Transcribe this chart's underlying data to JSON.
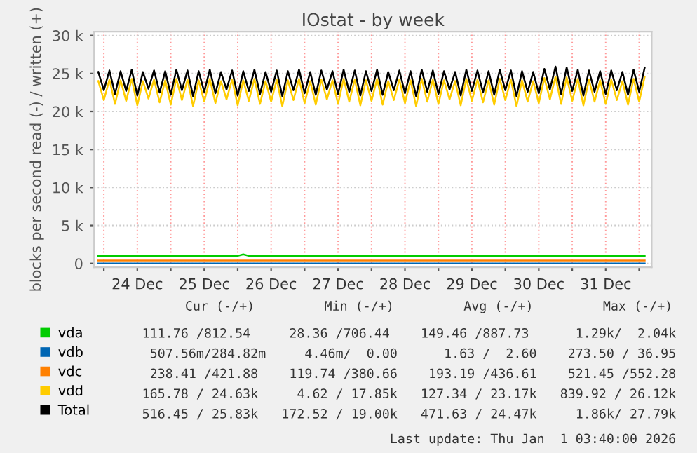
{
  "chart_data": {
    "type": "line",
    "title": "IOstat - by week",
    "ylabel": "blocks per second read (-) / written (+)",
    "x": [
      "2025-12-23T22:00",
      "2025-12-24T00:00",
      "2025-12-24T02:00",
      "2025-12-24T04:00",
      "2025-12-24T06:00",
      "2025-12-24T08:00",
      "2025-12-24T10:00",
      "2025-12-24T12:00",
      "2025-12-24T14:00",
      "2025-12-24T16:00",
      "2025-12-24T18:00",
      "2025-12-24T20:00",
      "2025-12-24T22:00",
      "2025-12-25T00:00",
      "2025-12-25T02:00",
      "2025-12-25T04:00",
      "2025-12-25T06:00",
      "2025-12-25T08:00",
      "2025-12-25T10:00",
      "2025-12-25T12:00",
      "2025-12-25T14:00",
      "2025-12-25T16:00",
      "2025-12-25T18:00",
      "2025-12-25T20:00",
      "2025-12-25T22:00",
      "2025-12-26T00:00",
      "2025-12-26T02:00",
      "2025-12-26T04:00",
      "2025-12-26T06:00",
      "2025-12-26T08:00",
      "2025-12-26T10:00",
      "2025-12-26T12:00",
      "2025-12-26T14:00",
      "2025-12-26T16:00",
      "2025-12-26T18:00",
      "2025-12-26T20:00",
      "2025-12-26T22:00",
      "2025-12-27T00:00",
      "2025-12-27T02:00",
      "2025-12-27T04:00",
      "2025-12-27T06:00",
      "2025-12-27T08:00",
      "2025-12-27T10:00",
      "2025-12-27T12:00",
      "2025-12-27T14:00",
      "2025-12-27T16:00",
      "2025-12-27T18:00",
      "2025-12-27T20:00",
      "2025-12-27T22:00",
      "2025-12-28T00:00",
      "2025-12-28T02:00",
      "2025-12-28T04:00",
      "2025-12-28T06:00",
      "2025-12-28T08:00",
      "2025-12-28T10:00",
      "2025-12-28T12:00",
      "2025-12-28T14:00",
      "2025-12-28T16:00",
      "2025-12-28T18:00",
      "2025-12-28T20:00",
      "2025-12-28T22:00",
      "2025-12-29T00:00",
      "2025-12-29T02:00",
      "2025-12-29T04:00",
      "2025-12-29T06:00",
      "2025-12-29T08:00",
      "2025-12-29T10:00",
      "2025-12-29T12:00",
      "2025-12-29T14:00",
      "2025-12-29T16:00",
      "2025-12-29T18:00",
      "2025-12-29T20:00",
      "2025-12-29T22:00",
      "2025-12-30T00:00",
      "2025-12-30T02:00",
      "2025-12-30T04:00",
      "2025-12-30T06:00",
      "2025-12-30T08:00",
      "2025-12-30T10:00",
      "2025-12-30T12:00",
      "2025-12-30T14:00",
      "2025-12-30T16:00",
      "2025-12-30T18:00",
      "2025-12-30T20:00",
      "2025-12-30T22:00",
      "2025-12-31T00:00",
      "2025-12-31T02:00",
      "2025-12-31T04:00",
      "2025-12-31T06:00",
      "2025-12-31T08:00",
      "2025-12-31T10:00",
      "2025-12-31T12:00",
      "2025-12-31T14:00",
      "2025-12-31T16:00",
      "2025-12-31T18:00",
      "2025-12-31T20:00",
      "2025-12-31T22:00",
      "2026-01-01T00:00",
      "2026-01-01T02:00"
    ],
    "series": [
      {
        "name": "vda",
        "color": "#00cc00",
        "values": [
          1000,
          1000,
          1000,
          1000,
          1000,
          1000,
          1000,
          1000,
          1000,
          1000,
          1000,
          1000,
          1000,
          1000,
          1000,
          1000,
          1000,
          1000,
          1000,
          1000,
          1000,
          1000,
          1000,
          1000,
          1000,
          1000,
          1200,
          1000,
          1000,
          1000,
          1000,
          1000,
          1000,
          1000,
          1000,
          1000,
          1000,
          1000,
          1000,
          1000,
          1000,
          1000,
          1000,
          1000,
          1000,
          1000,
          1000,
          1000,
          1000,
          1000,
          1000,
          1000,
          1000,
          1000,
          1000,
          1000,
          1000,
          1000,
          1000,
          1000,
          1000,
          1000,
          1000,
          1000,
          1000,
          1000,
          1000,
          1000,
          1000,
          1000,
          1000,
          1000,
          1000,
          1000,
          1000,
          1000,
          1000,
          1000,
          1000,
          1000,
          1000,
          1000,
          1000,
          1000,
          1000,
          1000,
          1000,
          1000,
          1000,
          1000,
          1000,
          1000,
          1000,
          1000,
          1000,
          1000,
          1000,
          1000,
          1000
        ]
      },
      {
        "name": "vdb",
        "color": "#0066b3",
        "values": [
          0,
          0,
          0,
          0,
          0,
          0,
          0,
          0,
          0,
          0,
          0,
          0,
          0,
          0,
          0,
          0,
          0,
          0,
          0,
          0,
          0,
          0,
          0,
          0,
          0,
          0,
          0,
          0,
          0,
          0,
          0,
          0,
          0,
          0,
          0,
          0,
          0,
          0,
          0,
          0,
          0,
          0,
          0,
          0,
          0,
          0,
          0,
          0,
          0,
          0,
          0,
          0,
          0,
          0,
          0,
          0,
          0,
          0,
          0,
          0,
          0,
          0,
          0,
          0,
          0,
          0,
          0,
          0,
          0,
          0,
          0,
          0,
          0,
          0,
          0,
          0,
          0,
          0,
          0,
          0,
          0,
          0,
          0,
          0,
          0,
          0,
          0,
          0,
          0,
          0,
          0,
          0,
          0,
          0,
          0,
          0,
          0,
          0,
          0
        ]
      },
      {
        "name": "vdc",
        "color": "#ff8000",
        "values": [
          400,
          400,
          400,
          400,
          400,
          400,
          400,
          400,
          400,
          400,
          400,
          400,
          400,
          400,
          400,
          400,
          400,
          400,
          400,
          400,
          400,
          400,
          400,
          400,
          400,
          400,
          400,
          400,
          400,
          400,
          400,
          400,
          400,
          400,
          400,
          400,
          400,
          400,
          400,
          400,
          400,
          400,
          400,
          400,
          400,
          400,
          400,
          400,
          400,
          400,
          400,
          400,
          400,
          400,
          400,
          400,
          400,
          400,
          400,
          400,
          400,
          400,
          400,
          400,
          400,
          400,
          400,
          400,
          400,
          400,
          400,
          400,
          400,
          400,
          400,
          400,
          400,
          400,
          400,
          400,
          400,
          400,
          400,
          400,
          400,
          400,
          400,
          400,
          400,
          400,
          400,
          400,
          400,
          400,
          400,
          400,
          400,
          400,
          400
        ]
      },
      {
        "name": "vdd",
        "color": "#ffcc00",
        "values": [
          24000,
          21500,
          24200,
          21000,
          24100,
          21400,
          24300,
          20800,
          24000,
          21700,
          24200,
          21200,
          24100,
          20900,
          24300,
          21500,
          24200,
          20700,
          24100,
          21300,
          24300,
          21100,
          24000,
          21600,
          24200,
          20800,
          24100,
          21400,
          24300,
          21000,
          24000,
          21300,
          24200,
          20700,
          24100,
          21500,
          24300,
          21100,
          24000,
          20900,
          24200,
          21600,
          24100,
          21000,
          24300,
          21300,
          24200,
          20800,
          24100,
          21400,
          24300,
          20900,
          24000,
          21500,
          24200,
          21100,
          24100,
          20700,
          24300,
          21300,
          24200,
          21000,
          24100,
          21600,
          24000,
          20800,
          24300,
          21400,
          24200,
          21200,
          24100,
          20900,
          24300,
          21500,
          24200,
          20700,
          24100,
          21300,
          24000,
          21100,
          24400,
          21600,
          24600,
          21000,
          24500,
          21400,
          24300,
          20800,
          24200,
          21300,
          24100,
          21000,
          24200,
          21500,
          24000,
          20900,
          24300,
          21300,
          24600
        ]
      },
      {
        "name": "Total",
        "color": "#000000",
        "values": [
          25200,
          22800,
          25400,
          22300,
          25300,
          22700,
          25500,
          22100,
          25200,
          23000,
          25400,
          22500,
          25300,
          22200,
          25500,
          22800,
          25400,
          22000,
          25300,
          22600,
          25500,
          22400,
          25200,
          22900,
          25400,
          22100,
          25300,
          22700,
          25500,
          22300,
          25200,
          22600,
          25400,
          22000,
          25300,
          22800,
          25500,
          22400,
          25200,
          22200,
          25400,
          22900,
          25300,
          22300,
          25500,
          22600,
          25400,
          22100,
          25300,
          22700,
          25500,
          22200,
          25200,
          22800,
          25400,
          22400,
          25300,
          22000,
          25500,
          22600,
          25400,
          22300,
          25300,
          22900,
          25200,
          22100,
          25500,
          22700,
          25400,
          22500,
          25300,
          22200,
          25500,
          22800,
          25400,
          22000,
          25300,
          22600,
          25200,
          22400,
          25600,
          22900,
          25900,
          22300,
          25800,
          22700,
          25500,
          22100,
          25400,
          22600,
          25300,
          22300,
          25400,
          22800,
          25200,
          22200,
          25500,
          22600,
          25800
        ]
      }
    ],
    "xlim": [
      "2025-12-23T20:30",
      "2026-01-01T04:30"
    ],
    "xticks": [
      {
        "value": "2025-12-24T00:00",
        "label": null
      },
      {
        "value": "2025-12-24T12:00",
        "label": "24 Dec"
      },
      {
        "value": "2025-12-25T00:00",
        "label": null
      },
      {
        "value": "2025-12-25T12:00",
        "label": "25 Dec"
      },
      {
        "value": "2025-12-26T00:00",
        "label": null
      },
      {
        "value": "2025-12-26T12:00",
        "label": "26 Dec"
      },
      {
        "value": "2025-12-27T00:00",
        "label": null
      },
      {
        "value": "2025-12-27T12:00",
        "label": "27 Dec"
      },
      {
        "value": "2025-12-28T00:00",
        "label": null
      },
      {
        "value": "2025-12-28T12:00",
        "label": "28 Dec"
      },
      {
        "value": "2025-12-29T00:00",
        "label": null
      },
      {
        "value": "2025-12-29T12:00",
        "label": "29 Dec"
      },
      {
        "value": "2025-12-30T00:00",
        "label": null
      },
      {
        "value": "2025-12-30T12:00",
        "label": "30 Dec"
      },
      {
        "value": "2025-12-31T00:00",
        "label": null
      },
      {
        "value": "2025-12-31T12:00",
        "label": "31 Dec"
      },
      {
        "value": "2026-01-01T00:00",
        "label": null
      }
    ],
    "ylim": [
      -500,
      30500
    ],
    "yticks": [
      {
        "value": 0,
        "label": "0"
      },
      {
        "value": 5000,
        "label": "5 k"
      },
      {
        "value": 10000,
        "label": "10 k"
      },
      {
        "value": 15000,
        "label": "15 k"
      },
      {
        "value": 20000,
        "label": "20 k"
      },
      {
        "value": 25000,
        "label": "25 k"
      },
      {
        "value": 30000,
        "label": "30 k"
      }
    ],
    "grid": true,
    "legend": "bottom left",
    "marker": "none",
    "line_style": "solid",
    "annotations": [
      "Cur (-/+)         Min (-/+)         Avg (-/+)         Max (-/+)",
      "111.76 /812.54     28.36 /706.44    149.46 /887.73      1.29k/  2.04k",
      "507.56m/284.82m     4.46m/  0.00      1.63 /  2.60    273.50 / 36.95",
      "238.41 /421.88    119.74 /380.66    193.19 /436.61    521.45 /552.28",
      "165.78 / 24.63k     4.62 / 17.85k   127.34 / 23.17k   839.92 / 26.12k",
      "516.45 / 25.83k   172.52 / 19.00k   471.63 / 24.47k     1.86k/ 27.79k",
      "Last update: Thu Jan  1 03:40:00 2026"
    ]
  }
}
